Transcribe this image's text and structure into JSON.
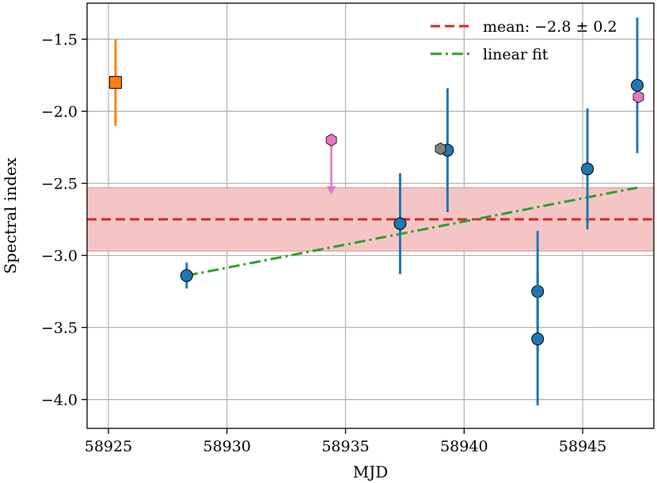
{
  "chart_data": {
    "type": "scatter",
    "xlabel": "MJD",
    "ylabel": "Spectral index",
    "xlim": [
      58924.1,
      58948.0
    ],
    "ylim": [
      -4.2,
      -1.25
    ],
    "x_ticks": [
      58925,
      58930,
      58935,
      58940,
      58945
    ],
    "x_tick_labels": [
      "58925",
      "58930",
      "58935",
      "58940",
      "58945"
    ],
    "y_ticks": [
      -1.5,
      -2.0,
      -2.5,
      -3.0,
      -3.5,
      -4.0
    ],
    "y_tick_labels": [
      "−1.5",
      "−2.0",
      "−2.5",
      "−3.0",
      "−3.5",
      "−4.0"
    ],
    "grid": true,
    "legend_position": "top-right",
    "mean": {
      "value": -2.75,
      "band": [
        -2.97,
        -2.53
      ],
      "label": "mean: −2.8 ± 0.2",
      "color": "#d62728",
      "band_color": "#f4c2c3"
    },
    "linear_fit": {
      "x": [
        58928.3,
        58947.3
      ],
      "y": [
        -3.14,
        -2.53
      ],
      "label": "linear fit",
      "color": "#2ca02c"
    },
    "series": [
      {
        "marker": "circle",
        "color": "#1f77b4",
        "points": [
          {
            "x": 58928.3,
            "y": -3.14,
            "err": 0.09
          },
          {
            "x": 58937.3,
            "y": -2.78,
            "err": 0.35
          },
          {
            "x": 58939.3,
            "y": -2.27,
            "err": 0.43
          },
          {
            "x": 58943.1,
            "y": -3.25,
            "err": 0.42
          },
          {
            "x": 58943.1,
            "y": -3.58,
            "err": 0.46
          },
          {
            "x": 58945.2,
            "y": -2.4,
            "err": 0.42
          },
          {
            "x": 58947.3,
            "y": -1.82,
            "err": 0.47
          }
        ]
      },
      {
        "marker": "square",
        "color": "#ff7f0e",
        "points": [
          {
            "x": 58925.3,
            "y": -1.8,
            "err": 0.3
          }
        ]
      },
      {
        "marker": "hexagon",
        "color": "#e377c2",
        "points": [
          {
            "x": 58934.4,
            "y": -2.2,
            "upper_limit": true
          },
          {
            "x": 58947.35,
            "y": -1.9
          }
        ]
      },
      {
        "marker": "hexagon",
        "color": "#7f7f7f",
        "points": [
          {
            "x": 58939.0,
            "y": -2.26
          }
        ]
      }
    ]
  }
}
